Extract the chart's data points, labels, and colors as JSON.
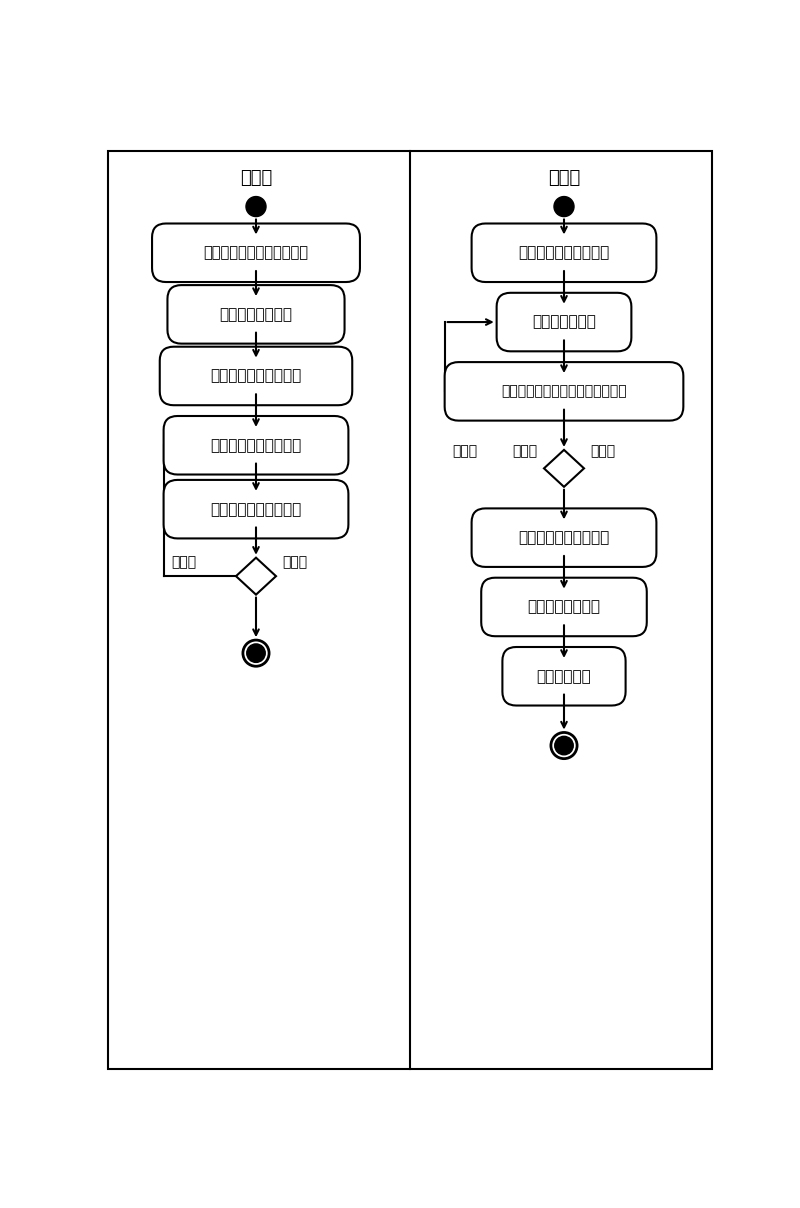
{
  "left_title": "发送方",
  "right_title": "接收方",
  "left_nodes_labels": [
    "计算校验值，组成完整数据",
    "编码双音多频数据",
    "组成双音多频信号信息",
    "控制喇叭发出声波信号",
    "判断是否到达超时时间"
  ],
  "right_nodes_labels": [
    "麦克风靠近发送方喇叭",
    "控制麦克风录音",
    "判断音频信息是否达到包长度要求",
    "解析双音多频信号信息",
    "解码双音多频数据",
    "校验完整数据"
  ],
  "left_diamond_label_left": "未超时",
  "left_diamond_label_right": "已超时",
  "right_diamond_label_left": "未达到",
  "right_diamond_label_right": "已达到",
  "bg_color": "#ffffff",
  "border_color": "#000000",
  "text_color": "#000000",
  "font_size": 11,
  "title_font_size": 13
}
